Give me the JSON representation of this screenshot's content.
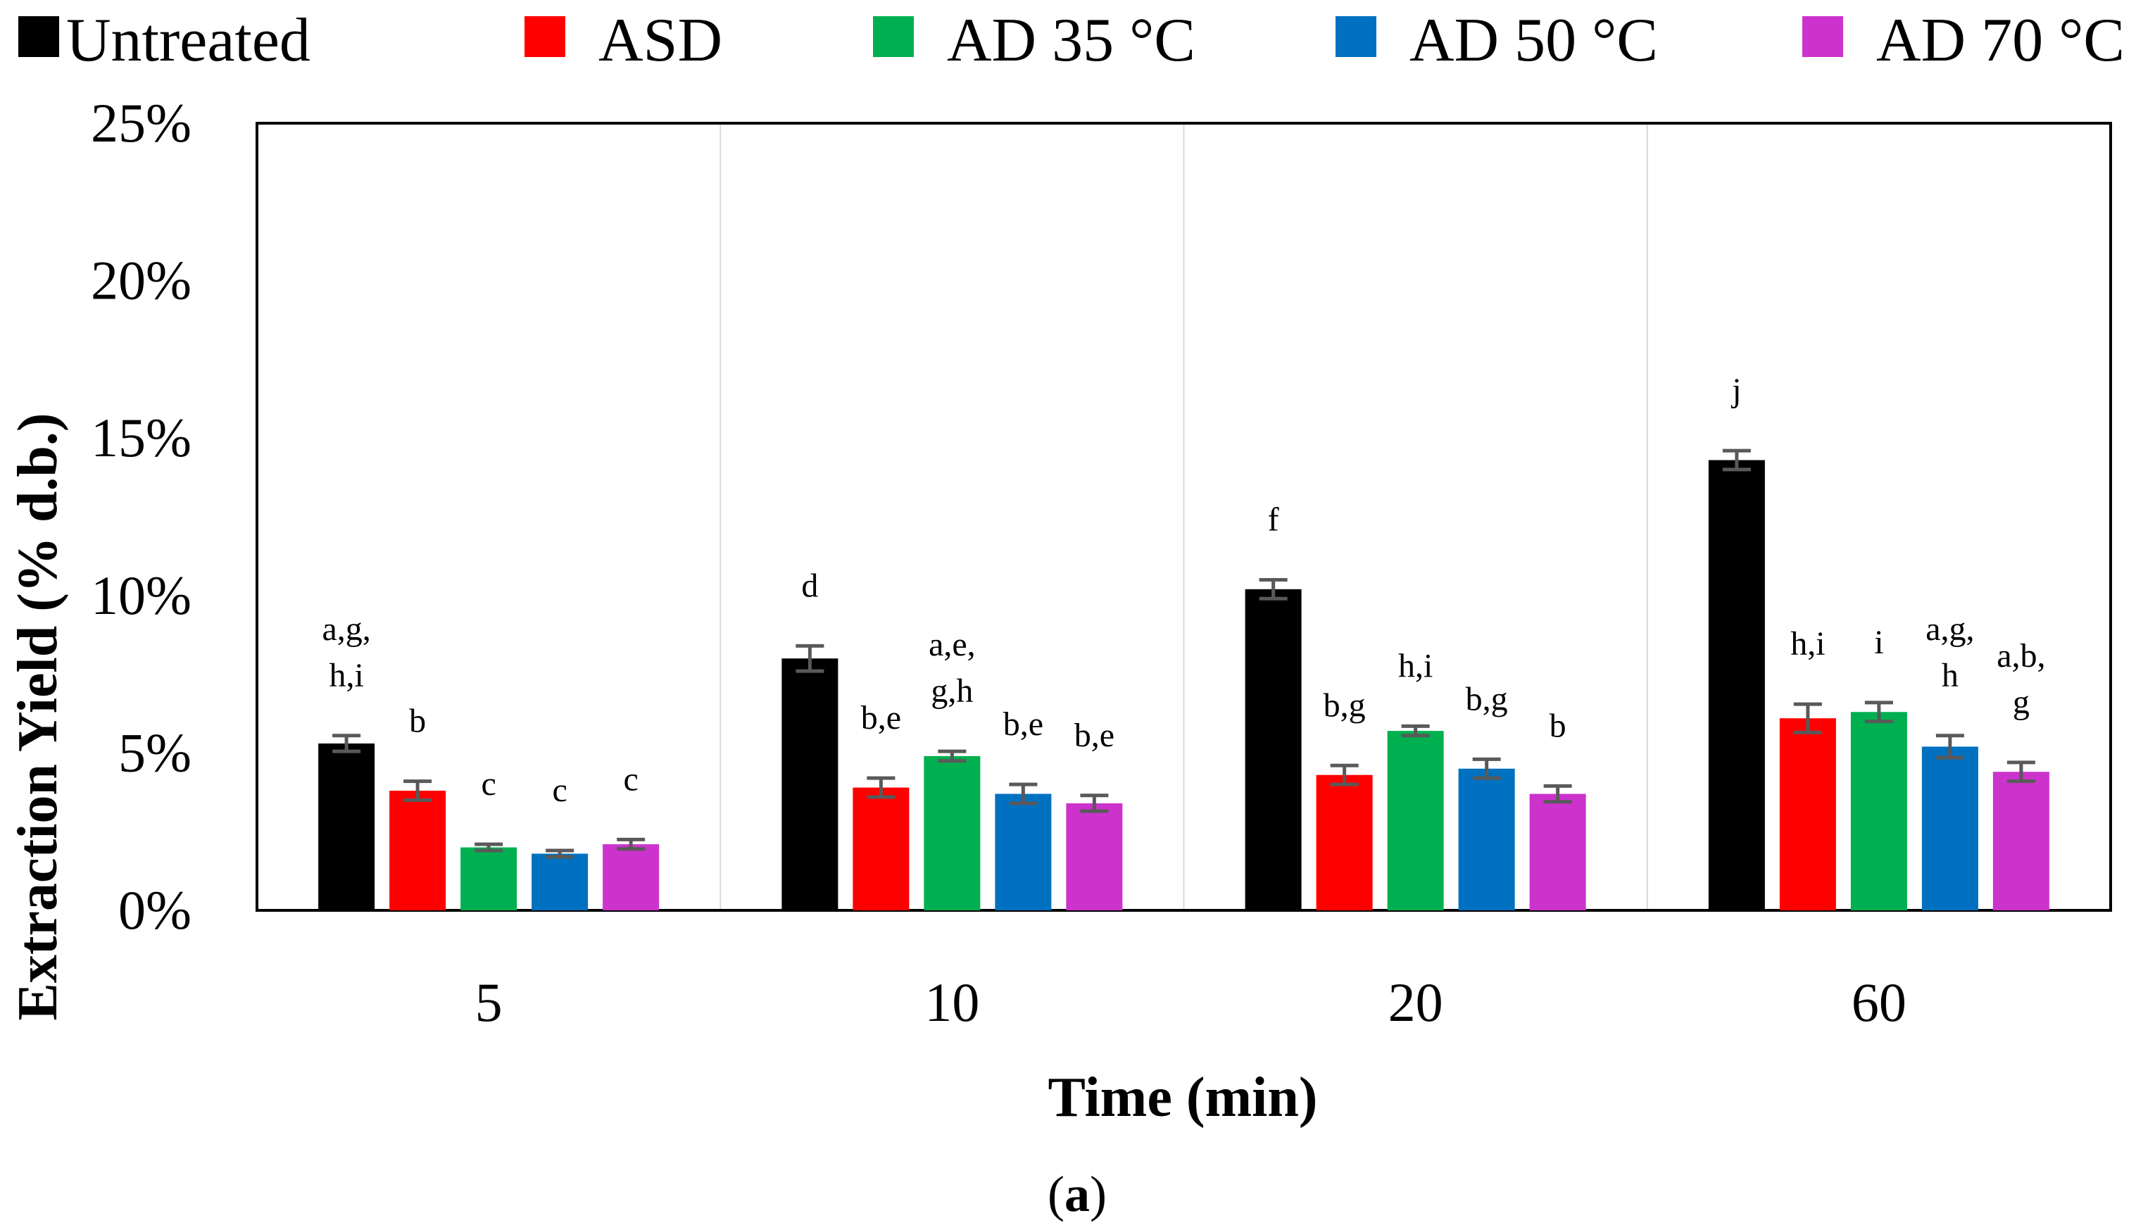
{
  "chart_data": {
    "type": "bar",
    "xlabel": "Time (min)",
    "ylabel": "Extraction Yield (% d.b.)",
    "ylim": [
      0,
      25
    ],
    "yticks": [
      "0%",
      "5%",
      "10%",
      "15%",
      "20%",
      "25%"
    ],
    "ytick_values": [
      0,
      5,
      10,
      15,
      20,
      25
    ],
    "categories": [
      "5",
      "10",
      "20",
      "60"
    ],
    "grid": "vertical-between-groups",
    "legend_position": "top",
    "series": [
      {
        "name": "Untreated",
        "color": "#000000",
        "values": [
          5.3,
          8.0,
          10.2,
          14.3
        ],
        "errors": [
          0.25,
          0.4,
          0.3,
          0.3
        ],
        "labels": [
          "a,g,\nh,i",
          "d",
          "f",
          "j"
        ]
      },
      {
        "name": "ASD",
        "color": "#ff0000",
        "values": [
          3.8,
          3.9,
          4.3,
          6.1
        ],
        "errors": [
          0.3,
          0.3,
          0.3,
          0.45
        ],
        "labels": [
          "b",
          "b,e",
          "b,g",
          "h,i"
        ]
      },
      {
        "name": "AD 35 °C",
        "color": "#00b050",
        "values": [
          2.0,
          4.9,
          5.7,
          6.3
        ],
        "errors": [
          0.1,
          0.15,
          0.15,
          0.3
        ],
        "labels": [
          "c",
          "a,e,\ng,h",
          "h,i",
          "i"
        ]
      },
      {
        "name": "AD 50 °C",
        "color": "#0070c0",
        "values": [
          1.8,
          3.7,
          4.5,
          5.2
        ],
        "errors": [
          0.1,
          0.3,
          0.3,
          0.35
        ],
        "labels": [
          "c",
          "b,e",
          "b,g",
          "a,g,\nh"
        ]
      },
      {
        "name": "AD 70 °C",
        "color": "#cc33cc",
        "values": [
          2.1,
          3.4,
          3.7,
          4.4
        ],
        "errors": [
          0.15,
          0.25,
          0.25,
          0.3
        ],
        "labels": [
          "c",
          "b,e",
          "b",
          "a,b,\ng"
        ]
      }
    ],
    "subcaption": "(a)",
    "subcaption_letter": "a"
  }
}
